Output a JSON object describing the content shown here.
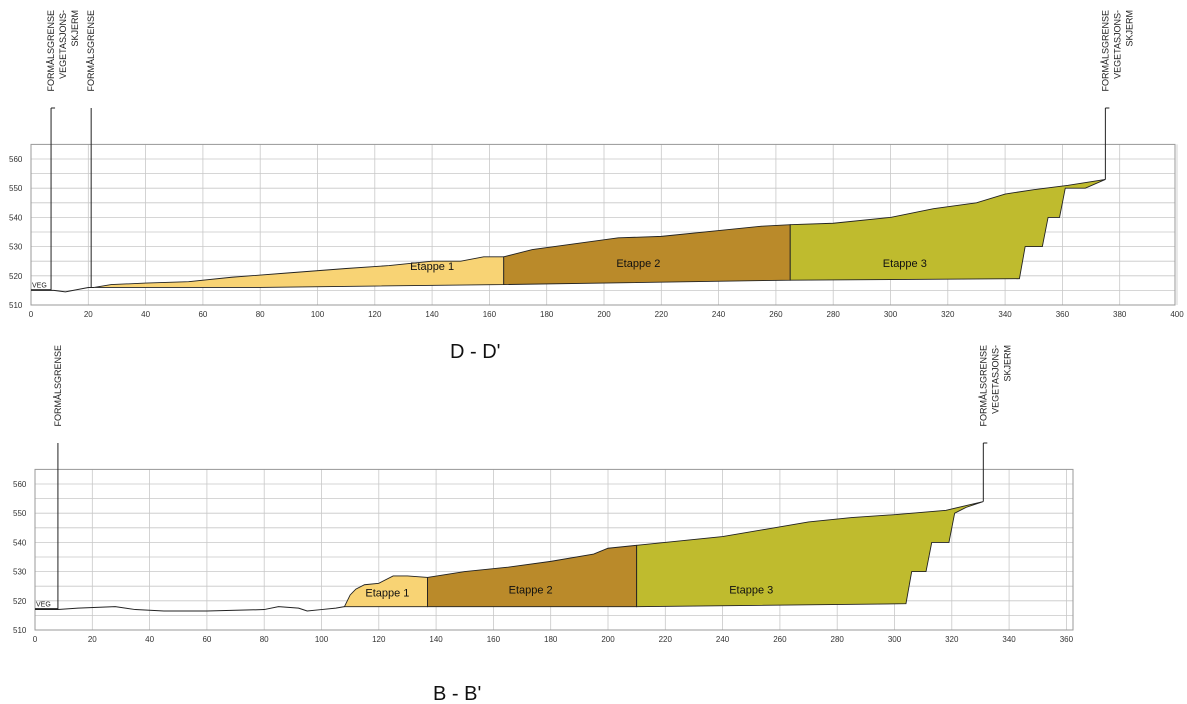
{
  "sections": [
    {
      "id": "DD",
      "title": "D - D'",
      "veg_label": "VEG",
      "x_ticks": [
        0,
        20,
        40,
        60,
        80,
        100,
        120,
        140,
        160,
        180,
        200,
        220,
        240,
        260,
        280,
        300,
        320,
        340,
        360,
        380,
        400
      ],
      "y_ticks": [
        510,
        520,
        530,
        540,
        550,
        560
      ],
      "vertical_labels": [
        {
          "x": 7,
          "lines": [
            "FORMÅLSGRENSE",
            "VEGETASJONS-",
            "SKJERM"
          ],
          "line": true
        },
        {
          "x": 21,
          "lines": [
            "FORMÅLSGRENSE"
          ],
          "line": true
        },
        {
          "x": 375,
          "lines": [
            "FORMÅLSGRENSE",
            "VEGETASJONS-",
            "SKJERM"
          ],
          "line": true
        }
      ],
      "etapper": [
        {
          "label": "Etappe 1",
          "color": "#f8d374",
          "label_x": 140,
          "label_y": 522,
          "poly": [
            [
              22,
              516
            ],
            [
              28,
              517
            ],
            [
              40,
              517.5
            ],
            [
              55,
              518
            ],
            [
              70,
              519.5
            ],
            [
              90,
              521
            ],
            [
              110,
              522.5
            ],
            [
              125,
              523.5
            ],
            [
              140,
              525
            ],
            [
              150,
              525
            ],
            [
              158,
              526.5
            ],
            [
              165,
              526.5
            ],
            [
              165,
              517
            ],
            [
              120,
              516.5
            ],
            [
              80,
              516
            ],
            [
              40,
              516
            ],
            [
              22,
              516
            ]
          ]
        },
        {
          "label": "Etappe 2",
          "color": "#ba8a2a",
          "label_x": 212,
          "label_y": 523,
          "poly": [
            [
              165,
              526.5
            ],
            [
              175,
              529
            ],
            [
              190,
              531
            ],
            [
              205,
              533
            ],
            [
              220,
              533.5
            ],
            [
              240,
              535.5
            ],
            [
              255,
              537
            ],
            [
              265,
              537.5
            ],
            [
              265,
              518.5
            ],
            [
              165,
              517
            ]
          ]
        },
        {
          "label": "Etappe 3",
          "color": "#bfbb2e",
          "label_x": 305,
          "label_y": 523,
          "poly": [
            [
              265,
              537.5
            ],
            [
              280,
              538
            ],
            [
              300,
              540
            ],
            [
              315,
              543
            ],
            [
              330,
              545
            ],
            [
              340,
              548
            ],
            [
              350,
              549.5
            ],
            [
              362,
              551
            ],
            [
              375,
              553
            ],
            [
              368,
              550
            ],
            [
              361,
              550
            ],
            [
              359,
              540
            ],
            [
              355,
              540
            ],
            [
              353,
              530
            ],
            [
              347,
              530
            ],
            [
              345,
              519
            ],
            [
              265,
              518.5
            ]
          ]
        }
      ],
      "ground": [
        [
          0,
          515
        ],
        [
          8,
          515
        ],
        [
          12,
          514.5
        ],
        [
          20,
          516
        ],
        [
          22,
          516
        ]
      ]
    },
    {
      "id": "BB",
      "title": "B - B'",
      "veg_label": "VEG",
      "x_ticks": [
        0,
        20,
        40,
        60,
        80,
        100,
        120,
        140,
        160,
        180,
        200,
        220,
        240,
        260,
        280,
        300,
        320,
        340,
        360
      ],
      "y_ticks": [
        510,
        520,
        530,
        540,
        550,
        560
      ],
      "vertical_labels": [
        {
          "x": 8,
          "lines": [
            "FORMÅLSGRENSE"
          ],
          "line": true
        },
        {
          "x": 331,
          "lines": [
            "FORMÅLSGRENSE",
            "VEGETASJONS-",
            "SKJERM"
          ],
          "line": true
        }
      ],
      "etapper": [
        {
          "label": "Etappe 1",
          "color": "#f8d374",
          "label_x": 123,
          "label_y": 521.5,
          "poly": [
            [
              108,
              518
            ],
            [
              110,
              522
            ],
            [
              112,
              524
            ],
            [
              115,
              525.5
            ],
            [
              120,
              526
            ],
            [
              125,
              528.5
            ],
            [
              130,
              528.5
            ],
            [
              137,
              528
            ],
            [
              137,
              518
            ],
            [
              108,
              518
            ]
          ]
        },
        {
          "label": "Etappe 2",
          "color": "#ba8a2a",
          "label_x": 173,
          "label_y": 522.5,
          "poly": [
            [
              137,
              528
            ],
            [
              150,
              530
            ],
            [
              165,
              531.5
            ],
            [
              180,
              533.5
            ],
            [
              195,
              536
            ],
            [
              200,
              538
            ],
            [
              210,
              539
            ],
            [
              210,
              518
            ],
            [
              137,
              518
            ]
          ]
        },
        {
          "label": "Etappe 3",
          "color": "#bfbb2e",
          "label_x": 250,
          "label_y": 522.5,
          "poly": [
            [
              210,
              539
            ],
            [
              225,
              540.5
            ],
            [
              240,
              542
            ],
            [
              255,
              544.5
            ],
            [
              270,
              547
            ],
            [
              285,
              548.5
            ],
            [
              300,
              549.5
            ],
            [
              318,
              551
            ],
            [
              331,
              554
            ],
            [
              325,
              552
            ],
            [
              321,
              550
            ],
            [
              319,
              540
            ],
            [
              313,
              540
            ],
            [
              311,
              530
            ],
            [
              306,
              530
            ],
            [
              304,
              519
            ],
            [
              210,
              518
            ]
          ]
        }
      ],
      "ground": [
        [
          0,
          517
        ],
        [
          8,
          517
        ],
        [
          15,
          517.5
        ],
        [
          28,
          518
        ],
        [
          35,
          517
        ],
        [
          45,
          516.5
        ],
        [
          60,
          516.5
        ],
        [
          80,
          517
        ],
        [
          85,
          518
        ],
        [
          92,
          517.5
        ],
        [
          95,
          516.5
        ],
        [
          100,
          517
        ],
        [
          105,
          517.5
        ],
        [
          108,
          518
        ]
      ]
    }
  ]
}
